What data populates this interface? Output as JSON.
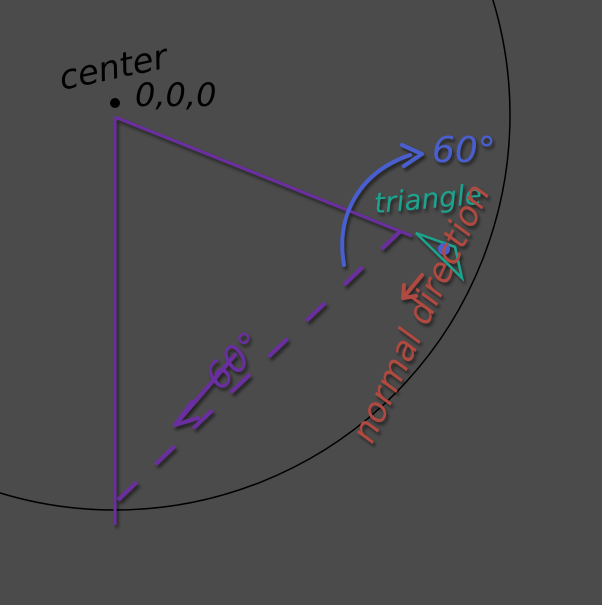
{
  "labels": {
    "center": "center",
    "origin": "0,0,0",
    "rotation_angle": "60°",
    "triangle": "triangle",
    "normal_direction": "normal direction",
    "half_angle": "60°"
  },
  "colors": {
    "background": "#4b4b4b",
    "circle": "#000000",
    "radius_lines": "#6a2fa0",
    "rotation_arrow": "#4a5ed0",
    "triangle": "#1fa38e",
    "normal_arrow": "#b04a40",
    "text_dark": "#000000"
  }
}
